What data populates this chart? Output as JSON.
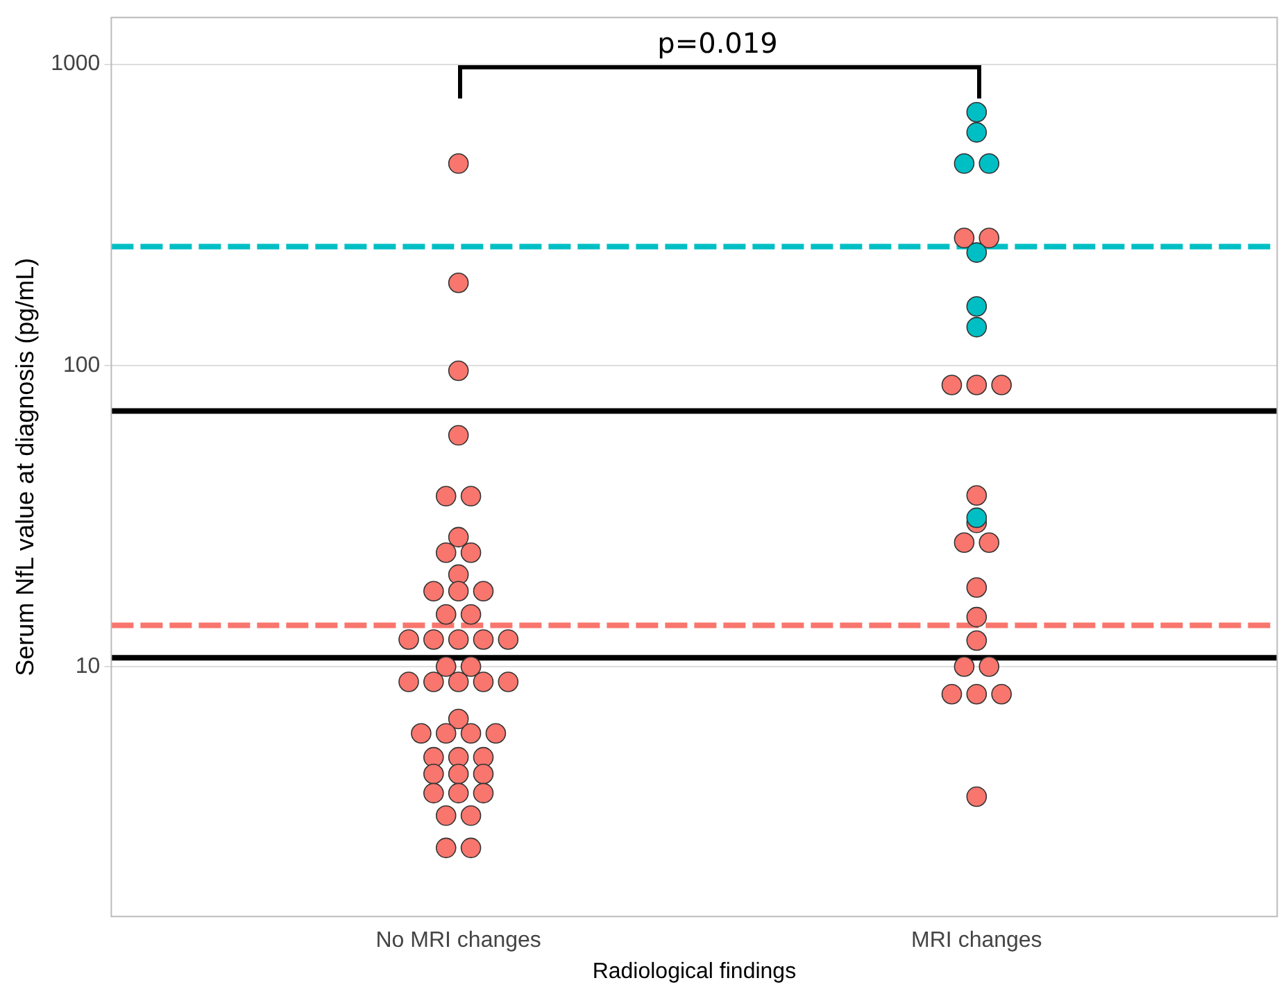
{
  "chart_data": {
    "type": "scatter",
    "xlabel": "Radiological findings",
    "ylabel": "Serum NfL value at diagnosis (pg/mL)",
    "categories": [
      "No MRI changes",
      "MRI changes"
    ],
    "log": "y",
    "ylim": [
      1.48,
      1430
    ],
    "yticks": [
      10,
      100,
      1000
    ],
    "grid": "y",
    "marker": "circle",
    "series": [
      {
        "color": "#f8766d",
        "x": [
          "No MRI changes",
          "No MRI changes",
          "No MRI changes",
          "No MRI changes",
          "No MRI changes",
          "No MRI changes",
          "No MRI changes",
          "No MRI changes",
          "No MRI changes",
          "No MRI changes",
          "No MRI changes",
          "No MRI changes",
          "No MRI changes",
          "No MRI changes",
          "No MRI changes",
          "No MRI changes",
          "No MRI changes",
          "No MRI changes",
          "No MRI changes",
          "No MRI changes",
          "No MRI changes",
          "No MRI changes",
          "No MRI changes",
          "No MRI changes",
          "No MRI changes",
          "No MRI changes",
          "No MRI changes",
          "No MRI changes",
          "No MRI changes",
          "No MRI changes",
          "No MRI changes",
          "No MRI changes",
          "No MRI changes",
          "No MRI changes",
          "No MRI changes",
          "No MRI changes",
          "No MRI changes",
          "No MRI changes",
          "No MRI changes",
          "No MRI changes",
          "No MRI changes",
          "No MRI changes",
          "No MRI changes",
          "No MRI changes",
          "No MRI changes",
          "MRI changes",
          "MRI changes",
          "MRI changes",
          "MRI changes",
          "MRI changes",
          "MRI changes",
          "MRI changes",
          "MRI changes",
          "MRI changes",
          "MRI changes",
          "MRI changes",
          "MRI changes",
          "MRI changes",
          "MRI changes",
          "MRI changes",
          "MRI changes",
          "MRI changes",
          "MRI changes"
        ],
        "values": [
          468,
          188,
          96,
          58.6,
          36.8,
          36.8,
          26.9,
          23.9,
          23.9,
          20.2,
          17.8,
          17.8,
          17.8,
          14.9,
          14.9,
          12.3,
          12.3,
          12.3,
          12.3,
          12.3,
          10,
          10,
          8.9,
          8.9,
          8.9,
          8.9,
          8.9,
          6.7,
          6,
          6,
          6,
          6,
          5,
          5,
          5,
          4.4,
          4.4,
          4.4,
          3.8,
          3.8,
          3.8,
          3.2,
          3.2,
          2.5,
          2.5,
          265,
          265,
          86.1,
          86.1,
          86.1,
          37,
          30,
          25.8,
          25.8,
          18.3,
          14.6,
          12.2,
          10,
          10,
          8.1,
          8.1,
          8.1,
          3.7
        ]
      },
      {
        "color": "#00bfc4",
        "x": [
          "MRI changes",
          "MRI changes",
          "MRI changes",
          "MRI changes",
          "MRI changes",
          "MRI changes",
          "MRI changes",
          "MRI changes"
        ],
        "values": [
          693,
          594,
          468,
          468,
          237,
          157,
          134,
          31.2
        ]
      }
    ],
    "ref_lines": [
      {
        "axis": "y",
        "value": 13.7,
        "color": "#f8766d",
        "line_style": "dashed"
      },
      {
        "axis": "y",
        "value": 248,
        "color": "#00bfc4",
        "line_style": "dashed"
      },
      {
        "axis": "y",
        "value": 10.7,
        "color": "#000000",
        "line_style": "solid"
      },
      {
        "axis": "y",
        "value": 70.6,
        "color": "#000000",
        "line_style": "solid"
      }
    ],
    "annotations": [
      "p=0.019"
    ]
  }
}
